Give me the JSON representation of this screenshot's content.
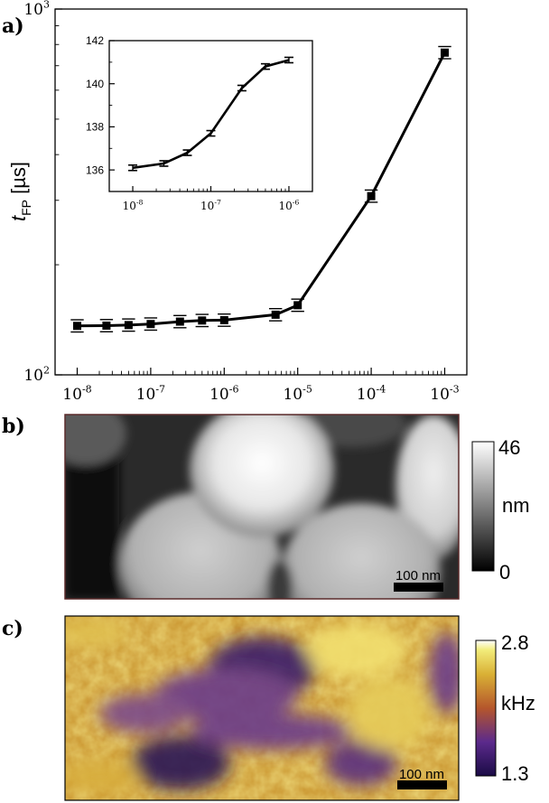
{
  "panels": {
    "a_label": "a)",
    "b_label": "b)",
    "c_label": "c)"
  },
  "chart_data": [
    {
      "type": "line",
      "id": "main",
      "xscale": "log",
      "yscale": "log",
      "x": [
        1e-08,
        2.5e-08,
        5e-08,
        1e-07,
        2.5e-07,
        5e-07,
        1e-06,
        5e-06,
        1e-05,
        0.0001,
        0.001
      ],
      "y": [
        136.1,
        136.3,
        136.8,
        137.7,
        139.8,
        140.8,
        141.1,
        146,
        155,
        308,
        760
      ],
      "xlim": [
        5e-09,
        0.002
      ],
      "ylim": [
        100,
        1000
      ],
      "ylabel_main": "t",
      "ylabel_sub": "FP",
      "ylabel_unit": " [µs]",
      "xticks": [
        "10",
        "10",
        "10",
        "10",
        "10",
        "10"
      ],
      "xtick_exps": [
        "-8",
        "-7",
        "-6",
        "-5",
        "-4",
        "-3"
      ],
      "xtick_values": [
        1e-08,
        1e-07,
        1e-06,
        1e-05,
        0.0001,
        0.001
      ],
      "yticks": [
        "10",
        "10"
      ],
      "ytick_exps": [
        "2",
        "3"
      ],
      "ytick_values": [
        100,
        1000
      ]
    },
    {
      "type": "line",
      "id": "inset",
      "xscale": "log",
      "yscale": "linear",
      "x": [
        1e-08,
        2.5e-08,
        5e-08,
        1e-07,
        2.5e-07,
        5e-07,
        1e-06
      ],
      "y": [
        136.1,
        136.3,
        136.8,
        137.7,
        139.8,
        140.8,
        141.1
      ],
      "xlim": [
        5e-09,
        2e-06
      ],
      "ylim": [
        135,
        142
      ],
      "xticks": [
        "10",
        "10",
        "10"
      ],
      "xtick_exps": [
        "-8",
        "-7",
        "-6"
      ],
      "xtick_values": [
        1e-08,
        1e-07,
        1e-06
      ],
      "yticks": [
        "136",
        "138",
        "140",
        "142"
      ],
      "ytick_values": [
        136,
        138,
        140,
        142
      ]
    }
  ],
  "image_b": {
    "scale_bar": "100 nm",
    "colorbar_max": "46",
    "colorbar_unit": "nm",
    "colorbar_min": "0"
  },
  "image_c": {
    "scale_bar": "100 nm",
    "colorbar_max": "2.8",
    "colorbar_unit": "kHz",
    "colorbar_min": "1.3"
  }
}
